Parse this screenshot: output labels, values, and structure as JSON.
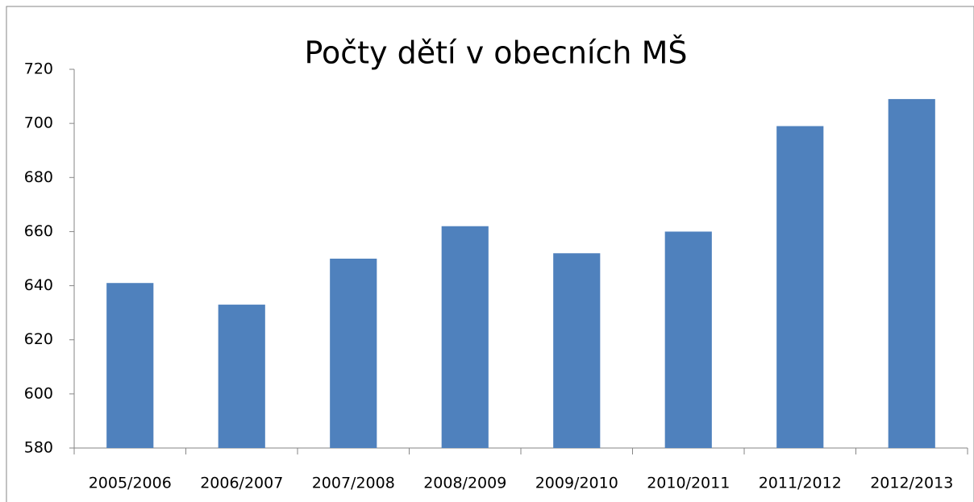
{
  "chart_data": {
    "type": "bar",
    "title": "Počty dětí v obecních MŠ",
    "categories": [
      "2005/2006",
      "2006/2007",
      "2007/2008",
      "2008/2009",
      "2009/2010",
      "2010/2011",
      "2011/2012",
      "2012/2013"
    ],
    "values": [
      641,
      633,
      650,
      662,
      652,
      660,
      699,
      709
    ],
    "color": "#4f81bd",
    "ylim": [
      580,
      720
    ],
    "yticks": [
      580,
      600,
      620,
      640,
      660,
      680,
      700,
      720
    ],
    "grid": false
  }
}
